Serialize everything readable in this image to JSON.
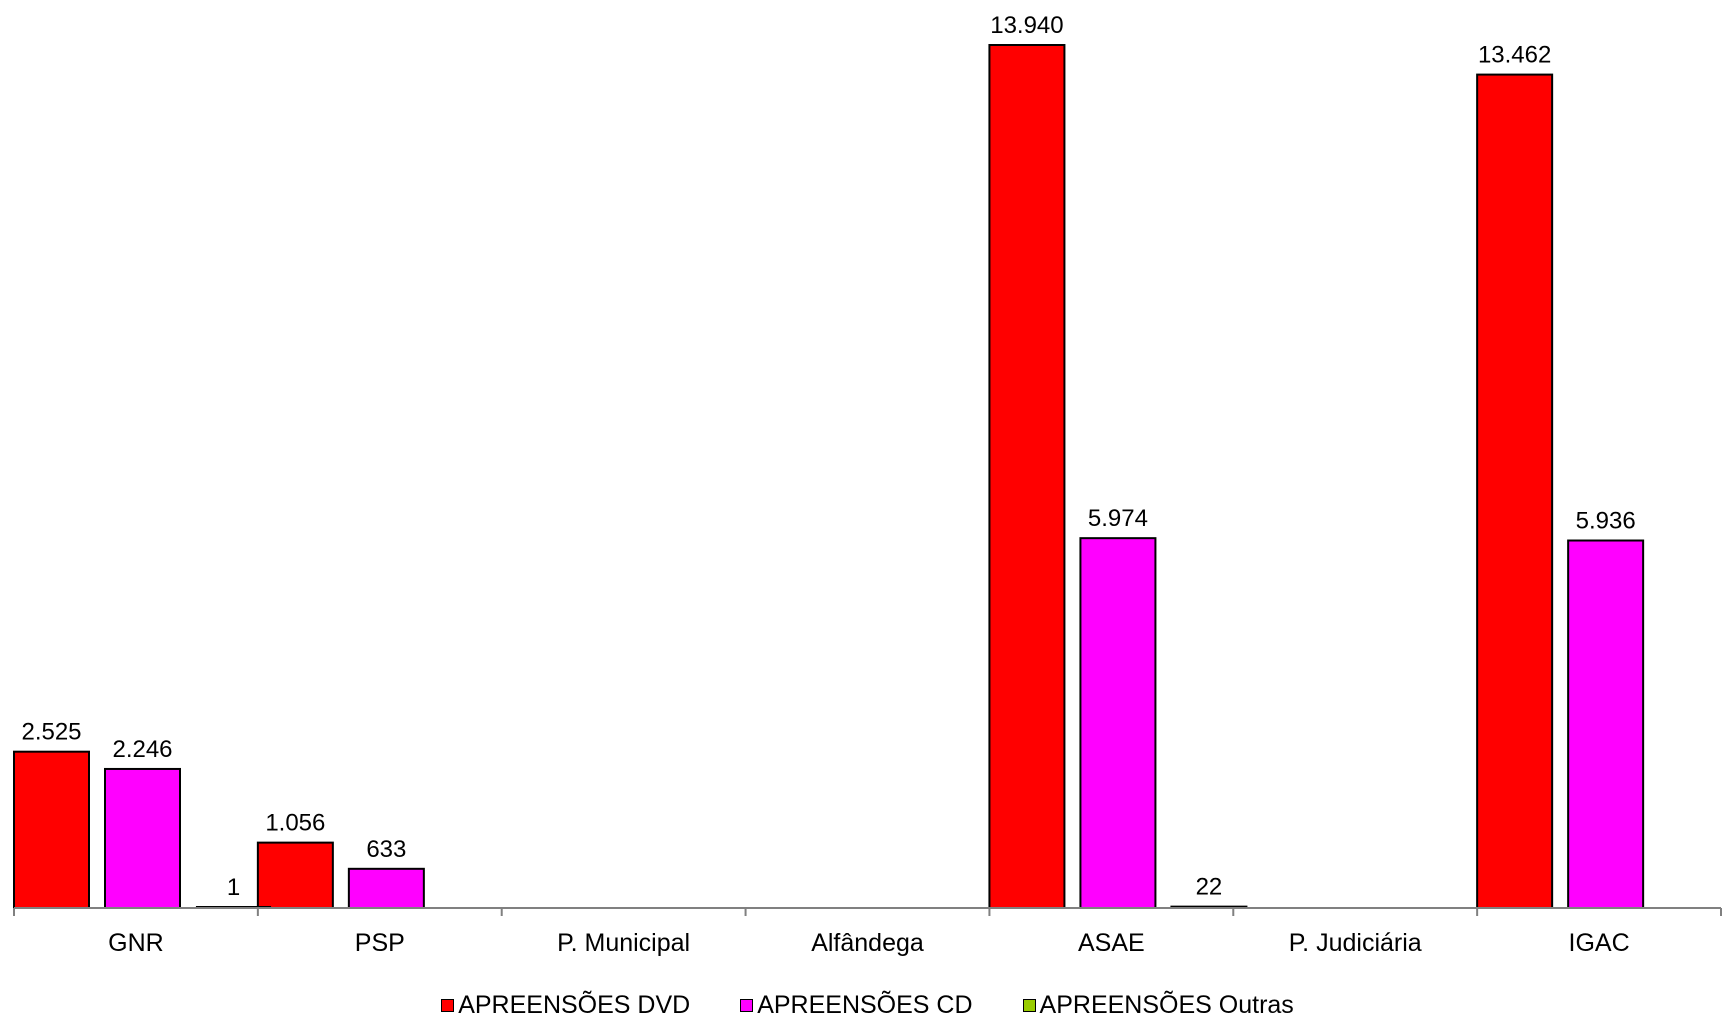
{
  "chart_data": {
    "type": "bar",
    "categories": [
      "GNR",
      "PSP",
      "P. Municipal",
      "Alfândega",
      "ASAE",
      "P. Judiciária",
      "IGAC"
    ],
    "series": [
      {
        "name": "APREENSÕES DVD",
        "color": "#ff0000",
        "values": [
          2525,
          1056,
          0,
          0,
          13940,
          0,
          13462
        ],
        "labels": [
          "2.525",
          "1.056",
          null,
          null,
          "13.940",
          null,
          "13.462"
        ]
      },
      {
        "name": "APREENSÕES CD",
        "color": "#ff00ff",
        "values": [
          2246,
          633,
          0,
          0,
          5974,
          0,
          5936
        ],
        "labels": [
          "2.246",
          "633",
          null,
          null,
          "5.974",
          null,
          "5.936"
        ]
      },
      {
        "name": "APREENSÕES Outras",
        "color": "#99cc00",
        "values": [
          1,
          0,
          0,
          0,
          22,
          0,
          0
        ],
        "labels": [
          "1",
          null,
          null,
          null,
          "22",
          null,
          null
        ]
      }
    ],
    "ylim": [
      0,
      14500
    ],
    "grid": false,
    "legend_position": "bottom"
  }
}
